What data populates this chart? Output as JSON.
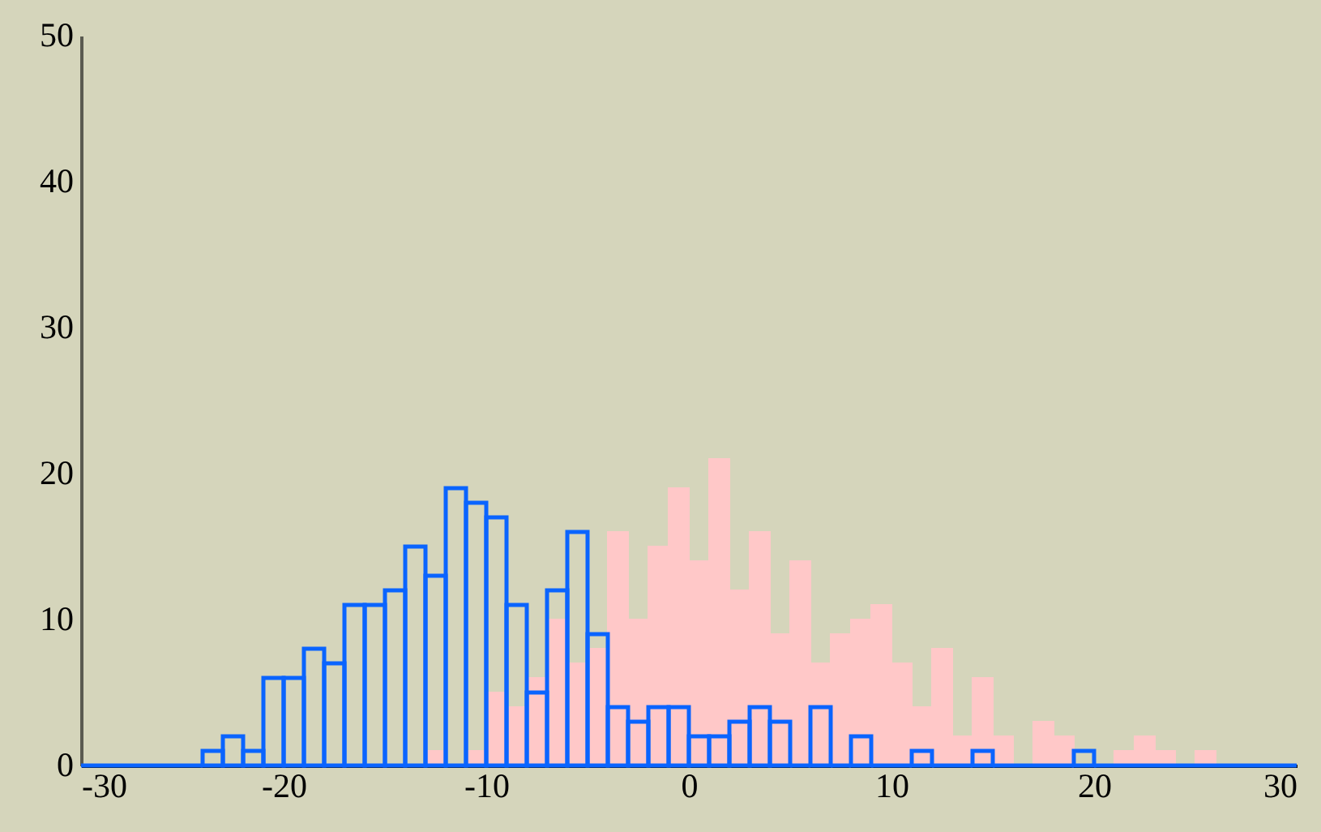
{
  "chart_data": {
    "type": "histogram",
    "bins": [
      -30,
      -29,
      -28,
      -27,
      -26,
      -25,
      -24,
      -23,
      -22,
      -21,
      -20,
      -19,
      -18,
      -17,
      -16,
      -15,
      -14,
      -13,
      -12,
      -11,
      -10,
      -9,
      -8,
      -7,
      -6,
      -5,
      -4,
      -3,
      -2,
      -1,
      0,
      1,
      2,
      3,
      4,
      5,
      6,
      7,
      8,
      9,
      10,
      11,
      12,
      13,
      14,
      15,
      16,
      17,
      18,
      19,
      20,
      21,
      22,
      23,
      24,
      25,
      26,
      27,
      28,
      29,
      30
    ],
    "series": [
      {
        "color": "#ffc8c8",
        "values": [
          0,
          0,
          0,
          0,
          0,
          0,
          0,
          0,
          0,
          0,
          0,
          0,
          0,
          0,
          0,
          0,
          0,
          1,
          0,
          1,
          5,
          4,
          6,
          10,
          7,
          8,
          16,
          10,
          15,
          19,
          14,
          21,
          12,
          16,
          9,
          14,
          7,
          9,
          10,
          11,
          7,
          4,
          8,
          2,
          6,
          2,
          0,
          3,
          2,
          0,
          0,
          1,
          2,
          1,
          0,
          1,
          0,
          0,
          0,
          0
        ]
      },
      {
        "color": "#0a64ff",
        "values": [
          0,
          0,
          0,
          0,
          0,
          0,
          1,
          2,
          1,
          6,
          6,
          8,
          7,
          11,
          11,
          12,
          15,
          13,
          19,
          18,
          17,
          11,
          5,
          12,
          16,
          9,
          4,
          3,
          4,
          4,
          2,
          2,
          3,
          4,
          3,
          0,
          4,
          0,
          2,
          0,
          0,
          1,
          0,
          0,
          1,
          0,
          0,
          0,
          0,
          1,
          0,
          0,
          0,
          0,
          0,
          0,
          0,
          0,
          0,
          0
        ]
      }
    ],
    "xlim": [
      -30,
      30
    ],
    "xticks": [
      -30,
      -20,
      -10,
      0,
      10,
      20,
      30
    ],
    "ylim": [
      0,
      50
    ],
    "yticks": [
      0,
      10,
      20,
      30,
      40,
      50
    ],
    "grid": false
  }
}
